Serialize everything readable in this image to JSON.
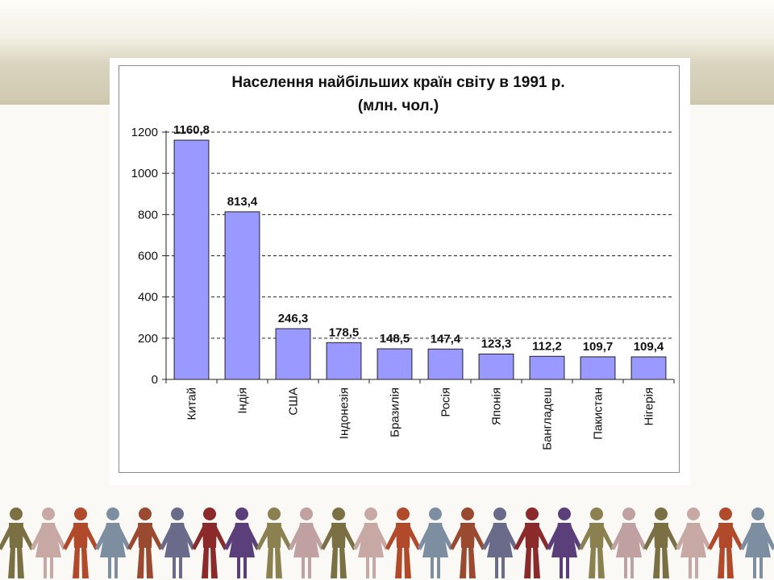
{
  "chart_data": {
    "type": "bar",
    "title_line1": "Населення найбільших країн світу в 1991 р.",
    "title_line2": "(млн. чол.)",
    "categories": [
      "Китай",
      "Індія",
      "США",
      "Індонезія",
      "Бразилія",
      "Росія",
      "Японія",
      "Бангладеш",
      "Пакистан",
      "Нігерія"
    ],
    "values": [
      1160.8,
      813.4,
      246.3,
      178.5,
      148.5,
      147.4,
      123.3,
      112.2,
      109.7,
      109.4
    ],
    "value_labels": [
      "1160,8",
      "813,4",
      "246,3",
      "178,5",
      "148,5",
      "147,4",
      "123,3",
      "112,2",
      "109,7",
      "109,4"
    ],
    "ylim": [
      0,
      1200
    ],
    "yticks": [
      "0",
      "200",
      "400",
      "600",
      "800",
      "1000",
      "1200"
    ],
    "grid": true,
    "bar_color": "#9999ff"
  },
  "decoration": {
    "people_colors": [
      "#7a7044",
      "#c7a8a4",
      "#b04a2a",
      "#7c8ea0",
      "#9a4a30",
      "#6a6a8a",
      "#8a2a2a",
      "#5a3f7a",
      "#8a8050",
      "#c0a0a0"
    ]
  }
}
